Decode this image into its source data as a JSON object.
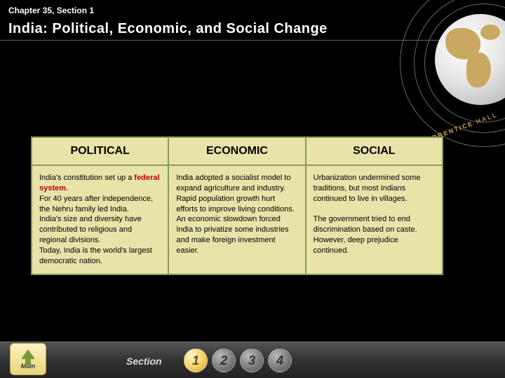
{
  "chapter_label": "Chapter 35, Section 1",
  "main_title": "India: Political, Economic, and Social Change",
  "brand": {
    "left": "PRENTICE",
    "right": "HALL"
  },
  "table": {
    "headers": [
      "POLITICAL",
      "ECONOMIC",
      "SOCIAL"
    ],
    "cells": {
      "political_a": "India's constitution set up a ",
      "political_b": "federal system.",
      "political_c": "For 40 years after independence, the Nehru family led India.",
      "political_d": "India's size and diversity have contributed to religious and regional divisions.",
      "political_e": "Today, India is the world's largest democratic nation.",
      "economic_a": "India adopted a socialist model to expand agriculture and industry.",
      "economic_b": "Rapid population growth hurt efforts to improve living conditions.",
      "economic_c": "An economic slowdown forced India to privatize some industries and make foreign investment easier.",
      "social_a": "Urbanization undermined some traditions, but most Indians continued to live in villages.",
      "social_b": "The government tried to end discrimination based on caste. However, deep prejudice continued."
    }
  },
  "footer": {
    "main_label": "Main",
    "section_label": "Section",
    "buttons": [
      "1",
      "2",
      "3",
      "4"
    ],
    "active_index": 0
  },
  "colors": {
    "table_bg": "#e8e3a8",
    "table_border": "#8a9a5b",
    "emphasis": "#c00000"
  }
}
